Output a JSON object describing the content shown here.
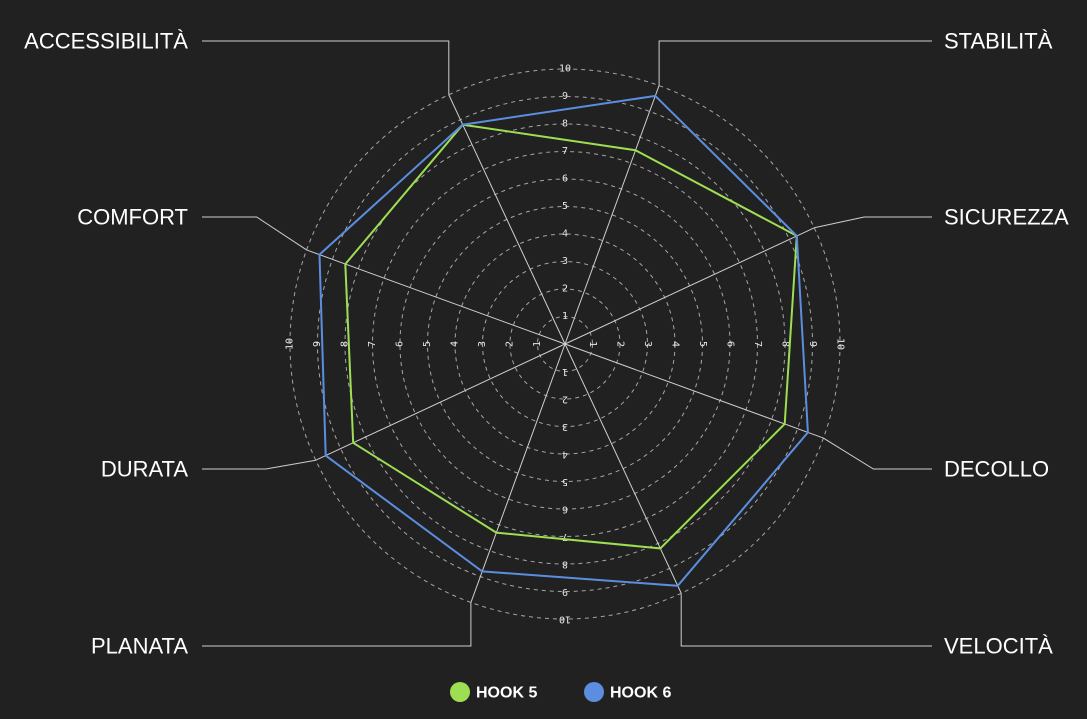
{
  "chart_data": {
    "type": "radar",
    "axes": [
      "STABILITÀ",
      "SICUREZZA",
      "DECOLLO",
      "VELOCITÀ",
      "PLANATA",
      "DURATA",
      "COMFORT",
      "ACCESSIBILITÀ"
    ],
    "rlim": [
      0,
      10
    ],
    "ticks": [
      "1",
      "2",
      "3",
      "4",
      "5",
      "6",
      "7",
      "8",
      "9",
      "10"
    ],
    "grid": true,
    "legend_position": "bottom",
    "series": [
      {
        "name": "HOOK 5",
        "color": "#9ede52",
        "values": [
          7.5,
          9.3,
          8.5,
          8.2,
          7.3,
          8.5,
          8.5,
          8.8
        ]
      },
      {
        "name": "HOOK 6",
        "color": "#5b8ee0",
        "values": [
          9.6,
          9.3,
          9.4,
          9.7,
          8.8,
          9.6,
          9.5,
          8.8
        ]
      }
    ]
  }
}
